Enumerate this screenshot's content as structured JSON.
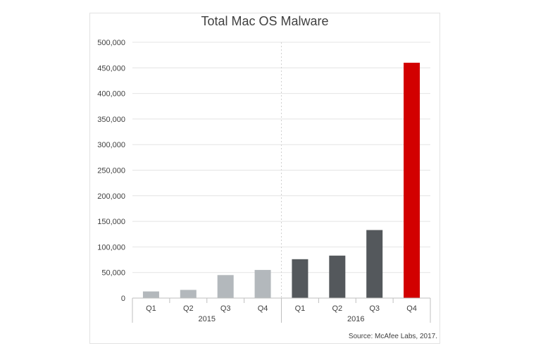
{
  "chart_data": {
    "type": "bar",
    "title": "Total Mac OS Malware",
    "source": "Source: McAfee Labs, 2017.",
    "categories": [
      "Q1",
      "Q2",
      "Q3",
      "Q4",
      "Q1",
      "Q2",
      "Q3",
      "Q4"
    ],
    "groups": [
      {
        "label": "2015",
        "categories": [
          "Q1",
          "Q2",
          "Q3",
          "Q4"
        ]
      },
      {
        "label": "2016",
        "categories": [
          "Q1",
          "Q2",
          "Q3",
          "Q4"
        ]
      }
    ],
    "values": [
      13000,
      16000,
      45000,
      55000,
      76000,
      83000,
      133000,
      460000
    ],
    "colors": [
      "#b3b8bc",
      "#b3b8bc",
      "#b3b8bc",
      "#b3b8bc",
      "#54585c",
      "#54585c",
      "#54585c",
      "#d20000"
    ],
    "ylim": [
      0,
      500000
    ],
    "yticks": [
      0,
      50000,
      100000,
      150000,
      200000,
      250000,
      300000,
      350000,
      400000,
      450000,
      500000
    ],
    "ytick_labels": [
      "0",
      "50,000",
      "100,000",
      "150,000",
      "200,000",
      "250,000",
      "300,000",
      "350,000",
      "400,000",
      "450,000",
      "500,000"
    ],
    "grid": true,
    "xlabel": "",
    "ylabel": ""
  }
}
